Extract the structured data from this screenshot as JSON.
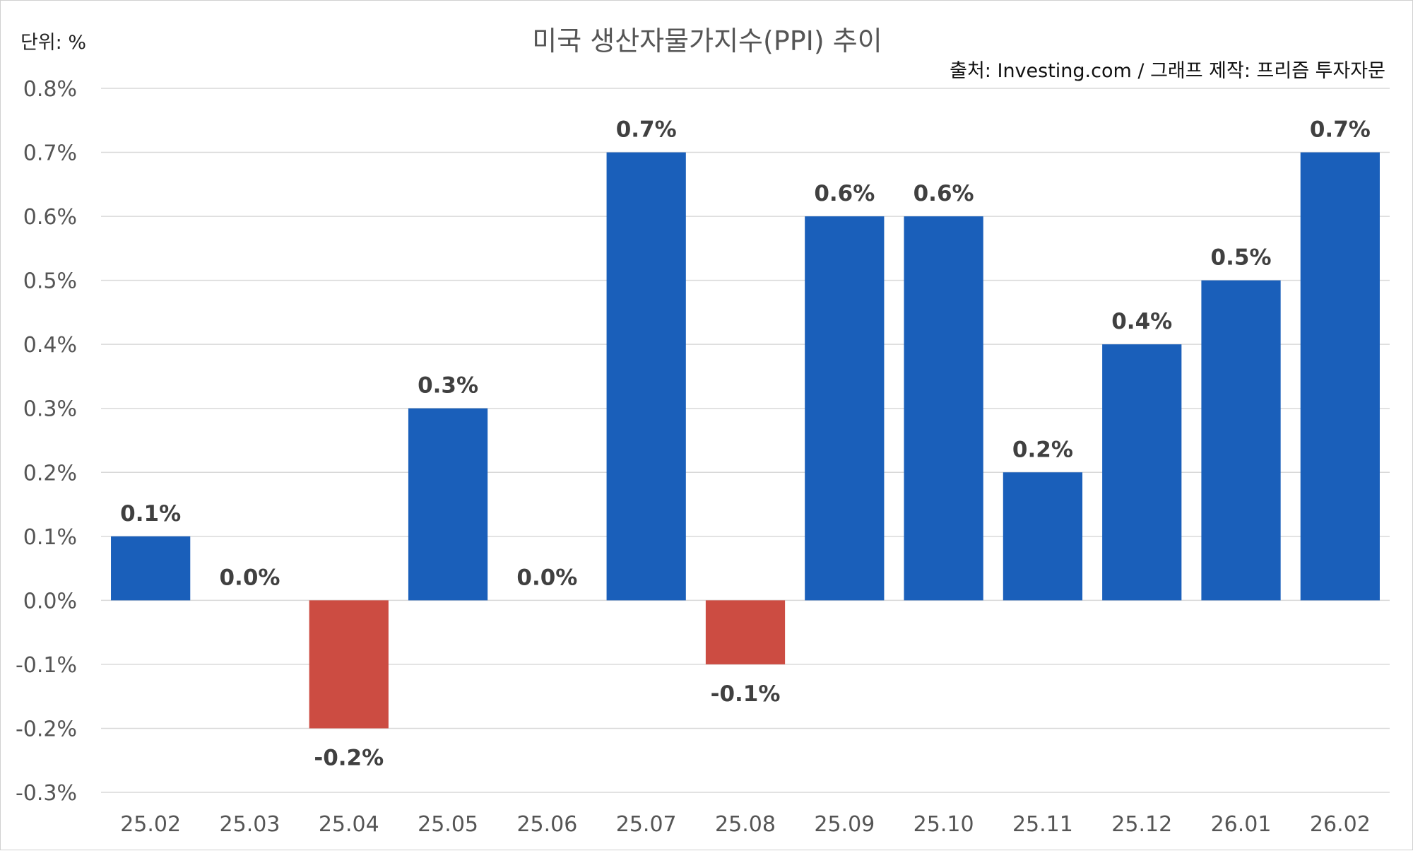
{
  "chart_data": {
    "type": "bar",
    "title": "미국 생산자물가지수(PPI) 추이",
    "unit_label": "단위: %",
    "source": "출처: Investing.com / 그래프 제작: 프리즘 투자자문",
    "categories": [
      "25.02",
      "25.03",
      "25.04",
      "25.05",
      "25.06",
      "25.07",
      "25.08",
      "25.09",
      "25.10",
      "25.11",
      "25.12",
      "26.01",
      "26.02"
    ],
    "values": [
      0.1,
      0.0,
      -0.2,
      0.3,
      0.0,
      0.7,
      -0.1,
      0.6,
      0.6,
      0.2,
      0.4,
      0.5,
      0.7
    ],
    "data_labels": [
      "0.1%",
      "0.0%",
      "-0.2%",
      "0.3%",
      "0.0%",
      "0.7%",
      "-0.1%",
      "0.6%",
      "0.6%",
      "0.2%",
      "0.4%",
      "0.5%",
      "0.7%"
    ],
    "yticks": [
      0.8,
      0.7,
      0.6,
      0.5,
      0.4,
      0.3,
      0.2,
      0.1,
      0.0,
      -0.1,
      -0.2,
      -0.3
    ],
    "ytick_labels": [
      "0.8%",
      "0.7%",
      "0.6%",
      "0.5%",
      "0.4%",
      "0.3%",
      "0.2%",
      "0.1%",
      "0.0%",
      "-0.1%",
      "-0.2%",
      "-0.3%"
    ],
    "ylim": [
      -0.3,
      0.8
    ],
    "grid": true,
    "colors": {
      "positive": "#1a5fba",
      "negative": "#cc4c42"
    }
  }
}
